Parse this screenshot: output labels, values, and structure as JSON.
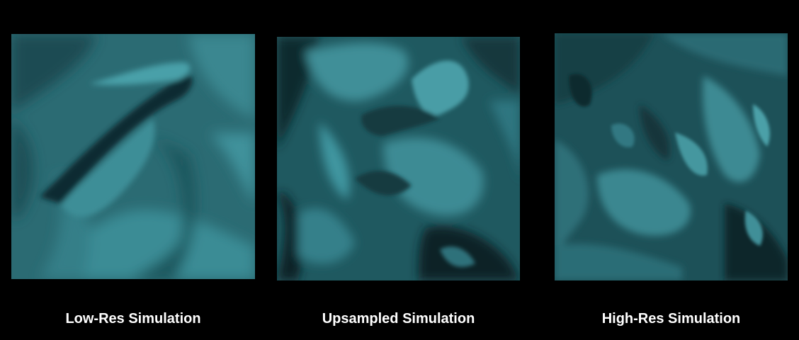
{
  "panels": [
    {
      "caption": "Low-Res Simulation"
    },
    {
      "caption": "Upsampled Simulation"
    },
    {
      "caption": "High-Res Simulation"
    }
  ],
  "colors": {
    "background": "#000000",
    "fluid_light": "#4a9aa3",
    "fluid_mid": "#2f7078",
    "fluid_dark": "#0c2429",
    "caption_text": "#ffffff"
  }
}
